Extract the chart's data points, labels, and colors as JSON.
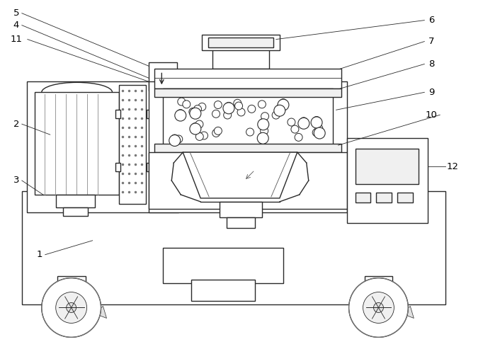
{
  "figure_size": [
    6.82,
    5.0
  ],
  "dpi": 100,
  "bg_color": "#ffffff",
  "line_color": "#2a2a2a",
  "lw": 1.0,
  "tlw": 0.6,
  "fc_light": "#f0f0f0",
  "fc_mid": "#e0e0e0",
  "fc_white": "#ffffff",
  "fc_dark": "#d0d0d0"
}
